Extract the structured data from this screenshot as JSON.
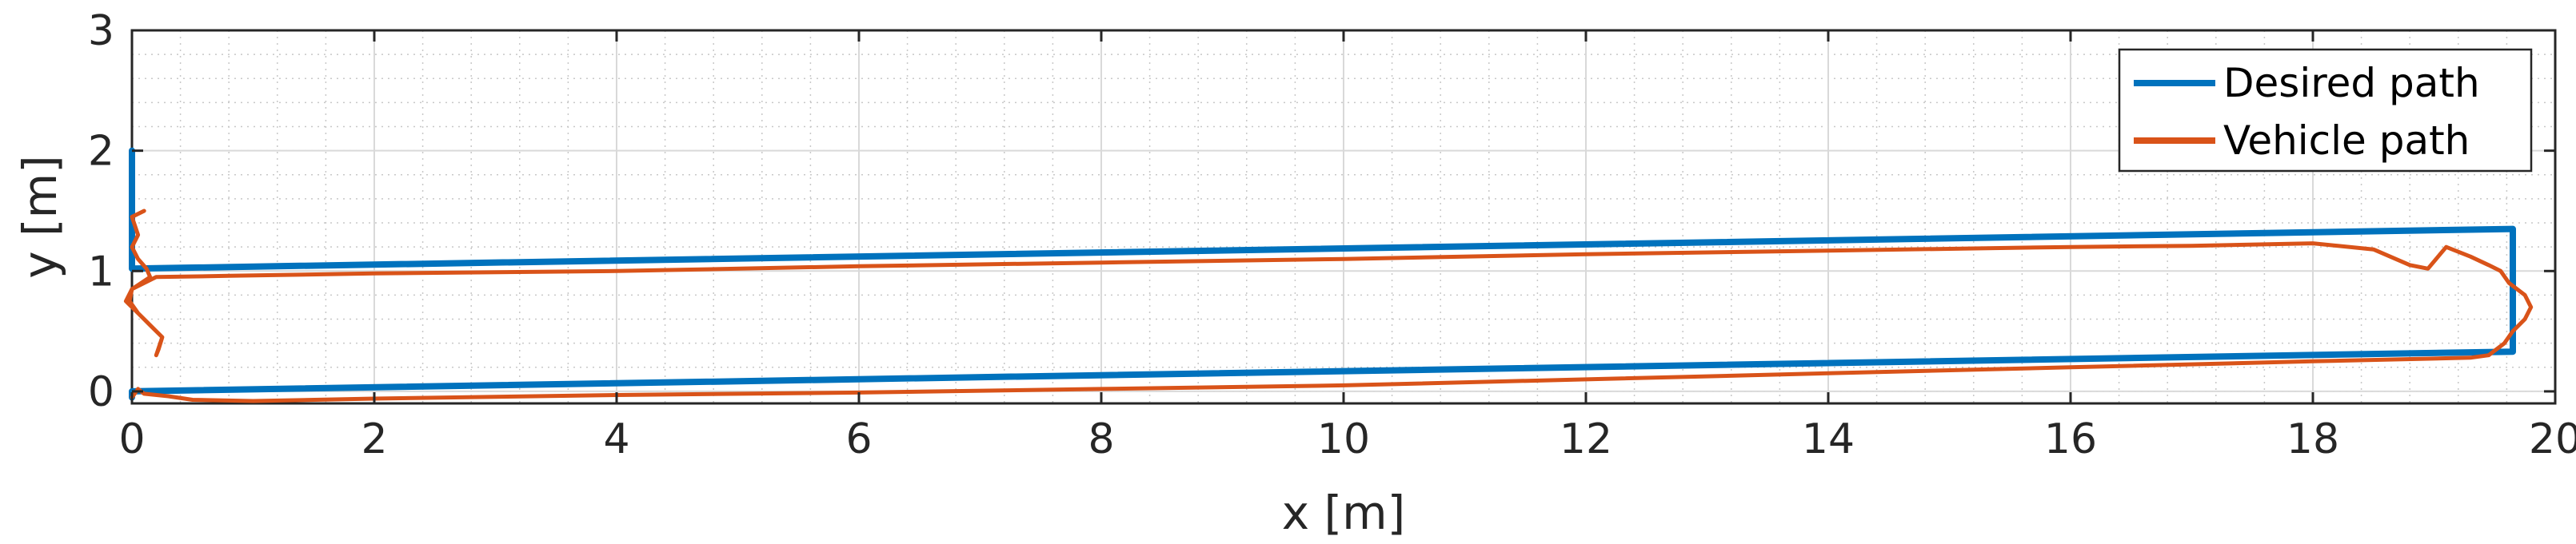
{
  "chart_data": {
    "type": "line",
    "xlabel": "x [m]",
    "ylabel": "y [m]",
    "xlim": [
      0,
      20
    ],
    "ylim": [
      -0.1,
      3
    ],
    "xticks": [
      0,
      2,
      4,
      6,
      8,
      10,
      12,
      14,
      16,
      18,
      20
    ],
    "yticks": [
      0,
      1,
      2,
      3
    ],
    "grid": true,
    "minor_grid": true,
    "legend_position": "top-right",
    "series": [
      {
        "name": "Desired path",
        "color": "#0072bd",
        "points": [
          [
            0,
            2.0
          ],
          [
            0,
            1.02
          ],
          [
            19.65,
            1.35
          ],
          [
            19.65,
            0.33
          ],
          [
            0,
            0.0
          ],
          [
            0,
            -0.05
          ]
        ]
      },
      {
        "name": "Vehicle path",
        "color": "#d95319",
        "points": [
          [
            0.1,
            1.5
          ],
          [
            0.0,
            1.45
          ],
          [
            0.05,
            1.3
          ],
          [
            0.0,
            1.2
          ],
          [
            0.05,
            1.1
          ],
          [
            0.12,
            1.02
          ],
          [
            0.15,
            0.95
          ],
          [
            0.0,
            0.85
          ],
          [
            -0.02,
            0.75
          ],
          [
            0.05,
            0.65
          ],
          [
            0.15,
            0.55
          ],
          [
            0.25,
            0.45
          ],
          [
            0.22,
            0.35
          ],
          [
            0.2,
            0.3
          ],
          [
            0.25,
            0.45
          ],
          [
            0.1,
            0.6
          ],
          [
            -0.05,
            0.75
          ],
          [
            0.0,
            0.85
          ],
          [
            0.2,
            0.95
          ],
          [
            0.8,
            0.96
          ],
          [
            2.0,
            0.98
          ],
          [
            4.0,
            1.0
          ],
          [
            6.0,
            1.04
          ],
          [
            8.0,
            1.07
          ],
          [
            10.0,
            1.1
          ],
          [
            12.0,
            1.14
          ],
          [
            14.0,
            1.17
          ],
          [
            16.0,
            1.2
          ],
          [
            17.0,
            1.21
          ],
          [
            18.0,
            1.23
          ],
          [
            18.5,
            1.18
          ],
          [
            18.8,
            1.05
          ],
          [
            18.95,
            1.02
          ],
          [
            19.1,
            1.2
          ],
          [
            19.3,
            1.12
          ],
          [
            19.45,
            1.05
          ],
          [
            19.55,
            1.0
          ],
          [
            19.62,
            0.9
          ],
          [
            19.75,
            0.8
          ],
          [
            19.8,
            0.7
          ],
          [
            19.75,
            0.6
          ],
          [
            19.65,
            0.5
          ],
          [
            19.58,
            0.4
          ],
          [
            19.45,
            0.3
          ],
          [
            19.3,
            0.28
          ],
          [
            18.0,
            0.25
          ],
          [
            16.0,
            0.2
          ],
          [
            14.0,
            0.15
          ],
          [
            12.0,
            0.1
          ],
          [
            10.0,
            0.05
          ],
          [
            8.0,
            0.02
          ],
          [
            6.0,
            -0.01
          ],
          [
            4.0,
            -0.03
          ],
          [
            2.0,
            -0.06
          ],
          [
            1.0,
            -0.08
          ],
          [
            0.5,
            -0.07
          ],
          [
            0.3,
            -0.04
          ],
          [
            0.1,
            -0.02
          ],
          [
            0.05,
            0.02
          ],
          [
            0.0,
            -0.05
          ]
        ]
      }
    ]
  }
}
